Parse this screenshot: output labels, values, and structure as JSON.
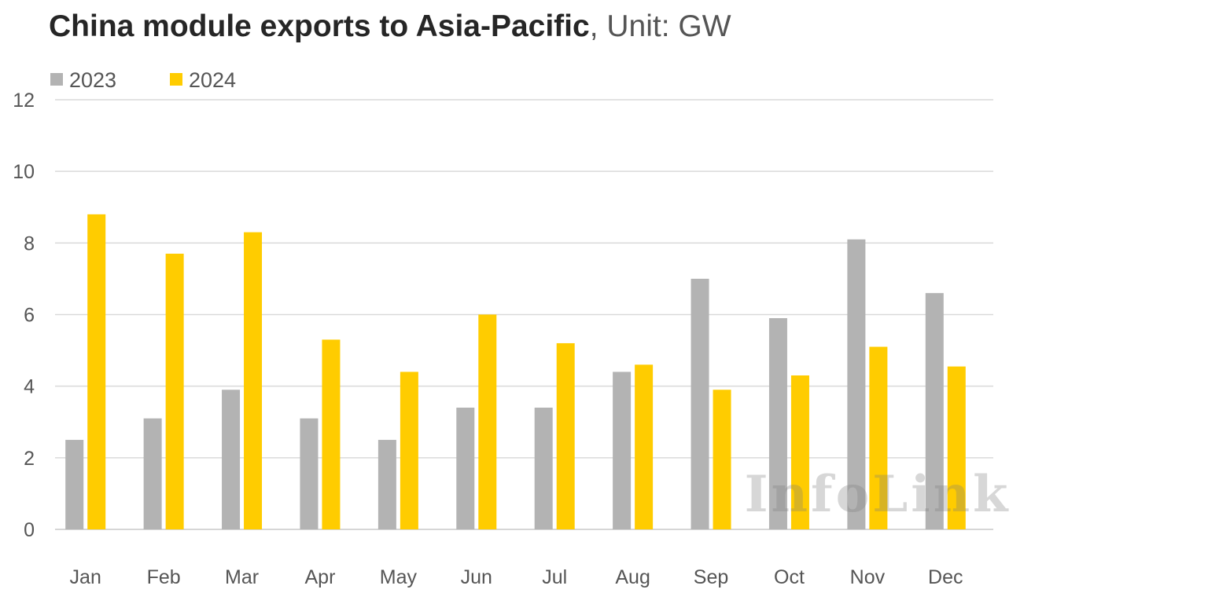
{
  "title": {
    "main": "China module exports to Asia-Pacific",
    "unit": ", Unit: GW"
  },
  "watermark": "InfoLink",
  "colors": {
    "series_2023": "#b3b3b3",
    "series_2024": "#ffcc00",
    "gridline": "#d9d9d9",
    "text": "#555555"
  },
  "chart_data": {
    "type": "bar",
    "title": "China module exports to Asia-Pacific",
    "unit": "GW",
    "categories": [
      "Jan",
      "Feb",
      "Mar",
      "Apr",
      "May",
      "Jun",
      "Jul",
      "Aug",
      "Sep",
      "Oct",
      "Nov",
      "Dec"
    ],
    "series": [
      {
        "name": "2023",
        "color": "#b3b3b3",
        "values": [
          2.5,
          3.1,
          3.9,
          3.1,
          2.5,
          3.4,
          3.4,
          4.4,
          7.0,
          5.9,
          8.1,
          6.6
        ]
      },
      {
        "name": "2024",
        "color": "#ffcc00",
        "values": [
          8.8,
          7.7,
          8.3,
          5.3,
          4.4,
          6.0,
          5.2,
          4.6,
          3.9,
          4.3,
          5.1,
          4.55
        ]
      }
    ],
    "yticks": [
      0,
      2,
      4,
      6,
      8,
      10,
      12
    ],
    "ylim": [
      0,
      12
    ],
    "grid": true,
    "legend_position": "top-left"
  }
}
